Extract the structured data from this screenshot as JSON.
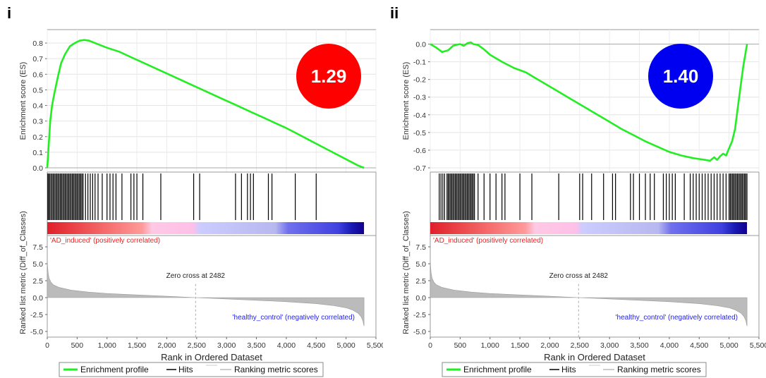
{
  "chart_data": [
    {
      "type": "line",
      "panel_label": "i",
      "nes_value": "1.29",
      "nes_color": "#ff0000",
      "es_ylabel": "Enrichment score (ES)",
      "es_ylim": [
        0.0,
        0.85
      ],
      "es_yticks": [
        "0.0",
        "0.1",
        "0.2",
        "0.3",
        "0.4",
        "0.5",
        "0.6",
        "0.7",
        "0.8"
      ],
      "es_curve": {
        "x": [
          0,
          20,
          50,
          80,
          120,
          170,
          230,
          300,
          380,
          460,
          540,
          620,
          700,
          800,
          900,
          1000,
          1200,
          1400,
          1600,
          1800,
          2000,
          2200,
          2400,
          2600,
          2800,
          3000,
          3200,
          3400,
          3600,
          3800,
          4000,
          4200,
          4400,
          4600,
          4800,
          5000,
          5200,
          5300
        ],
        "y": [
          0.0,
          0.12,
          0.3,
          0.4,
          0.48,
          0.57,
          0.67,
          0.73,
          0.78,
          0.8,
          0.815,
          0.82,
          0.815,
          0.8,
          0.785,
          0.77,
          0.745,
          0.71,
          0.675,
          0.64,
          0.605,
          0.57,
          0.535,
          0.5,
          0.465,
          0.43,
          0.395,
          0.36,
          0.325,
          0.29,
          0.255,
          0.215,
          0.175,
          0.135,
          0.095,
          0.055,
          0.015,
          0.0
        ]
      },
      "hits": [
        10,
        20,
        40,
        60,
        80,
        100,
        120,
        140,
        160,
        180,
        200,
        220,
        240,
        260,
        280,
        300,
        320,
        340,
        360,
        380,
        400,
        420,
        440,
        460,
        480,
        500,
        520,
        540,
        560,
        580,
        600,
        640,
        680,
        720,
        760,
        800,
        850,
        920,
        1000,
        1050,
        1100,
        1150,
        1250,
        1400,
        1450,
        1500,
        1600,
        1900,
        2450,
        2550,
        3150,
        3250,
        3350,
        3400,
        3450,
        3700,
        3760,
        4150,
        4500
      ],
      "gradient_stops": [
        {
          "offset": 0.0,
          "color": "#e0202a"
        },
        {
          "offset": 0.18,
          "color": "#f56a6a"
        },
        {
          "offset": 0.3,
          "color": "#ff9a9a"
        },
        {
          "offset": 0.33,
          "color": "#ffc8e4"
        },
        {
          "offset": 0.46,
          "color": "#ffc0e8"
        },
        {
          "offset": 0.48,
          "color": "#ccccff"
        },
        {
          "offset": 0.72,
          "color": "#b8b8f0"
        },
        {
          "offset": 0.76,
          "color": "#7070ee"
        },
        {
          "offset": 0.92,
          "color": "#4040e0"
        },
        {
          "offset": 0.96,
          "color": "#1a1ab4"
        },
        {
          "offset": 1.0,
          "color": "#100090"
        }
      ],
      "pos_label": "'AD_induced' (positively correlated)",
      "neg_label": "'healthy_control' (negatively correlated)",
      "zero_cross_label": "Zero cross at 2482",
      "zero_cross_x": 2482,
      "metric_ylabel": "Ranked list metric (Diff_of_Classes)",
      "metric_ylim": [
        -5.0,
        7.5
      ],
      "metric_yticks": [
        "7.5",
        "5.0",
        "2.5",
        "0.0",
        "-2.5",
        "-5.0"
      ],
      "metric_curve": {
        "x": [
          0,
          5,
          15,
          30,
          60,
          100,
          200,
          400,
          700,
          1000,
          1500,
          2000,
          2482,
          3000,
          3500,
          4000,
          4500,
          4800,
          5000,
          5100,
          5200,
          5250,
          5280,
          5300
        ],
        "y": [
          6.0,
          4.6,
          3.6,
          2.9,
          2.3,
          1.9,
          1.5,
          1.1,
          0.8,
          0.6,
          0.4,
          0.2,
          0.0,
          -0.2,
          -0.4,
          -0.6,
          -0.9,
          -1.2,
          -1.5,
          -1.8,
          -2.3,
          -2.8,
          -3.4,
          -4.2
        ]
      },
      "xlabel": "Rank in Ordered Dataset",
      "xlim": [
        0,
        5500
      ],
      "xticks": [
        "0",
        "500",
        "1,000",
        "1,500",
        "2,000",
        "2,500",
        "3,000",
        "3,500",
        "4,000",
        "4,500",
        "5,000",
        "5,500"
      ],
      "legend": [
        "Enrichment profile",
        "Hits",
        "Ranking metric scores"
      ],
      "colors": {
        "profile": "#22ee22",
        "hits": "#000000",
        "metric": "#bbbbbb"
      }
    },
    {
      "type": "line",
      "panel_label": "ii",
      "nes_value": "1.40",
      "nes_color": "#0000f0",
      "es_ylabel": "Enrichment score (ES)",
      "es_ylim": [
        -0.7,
        0.05
      ],
      "es_yticks": [
        "0.0",
        "-0.1",
        "-0.2",
        "-0.3",
        "-0.4",
        "-0.5",
        "-0.6",
        "-0.7"
      ],
      "es_curve": {
        "x": [
          0,
          100,
          200,
          300,
          380,
          420,
          500,
          560,
          620,
          680,
          720,
          800,
          900,
          1000,
          1200,
          1400,
          1600,
          1800,
          2000,
          2200,
          2400,
          2600,
          2800,
          3000,
          3200,
          3400,
          3600,
          3800,
          4000,
          4200,
          4400,
          4500,
          4600,
          4680,
          4750,
          4800,
          4850,
          4900,
          4950,
          5000,
          5050,
          5100,
          5150,
          5200,
          5240,
          5280,
          5300
        ],
        "y": [
          0.0,
          -0.02,
          -0.045,
          -0.035,
          -0.01,
          -0.005,
          0.0,
          -0.01,
          0.005,
          0.01,
          0.0,
          -0.005,
          -0.03,
          -0.06,
          -0.1,
          -0.135,
          -0.16,
          -0.2,
          -0.24,
          -0.28,
          -0.32,
          -0.36,
          -0.4,
          -0.44,
          -0.48,
          -0.515,
          -0.55,
          -0.58,
          -0.61,
          -0.63,
          -0.645,
          -0.65,
          -0.655,
          -0.66,
          -0.64,
          -0.655,
          -0.635,
          -0.62,
          -0.63,
          -0.59,
          -0.55,
          -0.48,
          -0.35,
          -0.22,
          -0.12,
          -0.04,
          0.0
        ]
      },
      "hits": [
        150,
        180,
        210,
        240,
        280,
        300,
        320,
        340,
        360,
        380,
        400,
        420,
        440,
        460,
        480,
        500,
        520,
        540,
        560,
        580,
        600,
        620,
        640,
        660,
        680,
        700,
        720,
        740,
        800,
        900,
        1000,
        1100,
        1200,
        1250,
        1500,
        1700,
        2150,
        2500,
        2550,
        2700,
        2900,
        3050,
        3100,
        3350,
        3400,
        3500,
        3600,
        3680,
        3750,
        3900,
        3950,
        4000,
        4050,
        4100,
        4250,
        4350,
        4400,
        4450,
        4500,
        4550,
        4600,
        4650,
        4700,
        4750,
        4800,
        4850,
        4900,
        4950,
        5000,
        5020,
        5040,
        5060,
        5080,
        5100,
        5120,
        5140,
        5160,
        5180,
        5200,
        5220,
        5240,
        5260,
        5280,
        5300
      ],
      "gradient_stops": [
        {
          "offset": 0.0,
          "color": "#e0202a"
        },
        {
          "offset": 0.18,
          "color": "#f56a6a"
        },
        {
          "offset": 0.3,
          "color": "#ff9a9a"
        },
        {
          "offset": 0.33,
          "color": "#ffc8e4"
        },
        {
          "offset": 0.46,
          "color": "#ffc0e8"
        },
        {
          "offset": 0.48,
          "color": "#ccccff"
        },
        {
          "offset": 0.72,
          "color": "#b8b8f0"
        },
        {
          "offset": 0.76,
          "color": "#7070ee"
        },
        {
          "offset": 0.92,
          "color": "#4040e0"
        },
        {
          "offset": 0.96,
          "color": "#1a1ab4"
        },
        {
          "offset": 1.0,
          "color": "#100090"
        }
      ],
      "pos_label": "'AD_induced' (positively correlated)",
      "neg_label": "'healthy_control' (negatively correlated)",
      "zero_cross_label": "Zero cross at 2482",
      "zero_cross_x": 2482,
      "metric_ylabel": "Ranked list metric (Diff_of_Classes)",
      "metric_ylim": [
        -5.0,
        7.5
      ],
      "metric_yticks": [
        "7.5",
        "5.0",
        "2.5",
        "0.0",
        "-2.5",
        "-5.0"
      ],
      "metric_curve": {
        "x": [
          0,
          5,
          15,
          30,
          60,
          100,
          200,
          400,
          700,
          1000,
          1500,
          2000,
          2482,
          3000,
          3500,
          4000,
          4500,
          4800,
          5000,
          5100,
          5200,
          5250,
          5280,
          5300
        ],
        "y": [
          6.0,
          4.6,
          3.6,
          2.9,
          2.3,
          1.9,
          1.5,
          1.1,
          0.8,
          0.6,
          0.4,
          0.2,
          0.0,
          -0.2,
          -0.4,
          -0.6,
          -0.9,
          -1.2,
          -1.5,
          -1.8,
          -2.3,
          -2.8,
          -3.4,
          -4.2
        ]
      },
      "xlabel": "Rank in Ordered Dataset",
      "xlim": [
        0,
        5500
      ],
      "xticks": [
        "0",
        "500",
        "1,000",
        "1,500",
        "2,000",
        "2,500",
        "3,000",
        "3,500",
        "4,000",
        "4,500",
        "5,000",
        "5,500"
      ],
      "legend": [
        "Enrichment profile",
        "Hits",
        "Ranking metric scores"
      ],
      "colors": {
        "profile": "#22ee22",
        "hits": "#000000",
        "metric": "#bbbbbb"
      }
    }
  ]
}
